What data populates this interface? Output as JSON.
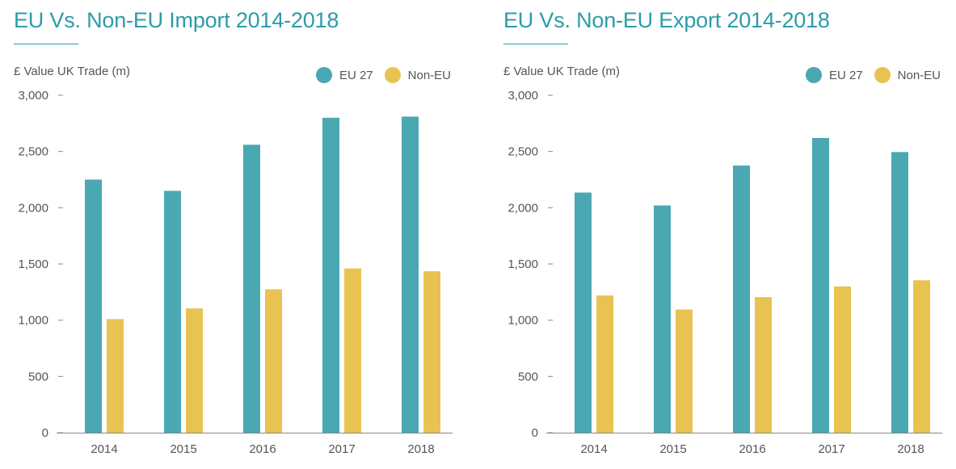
{
  "colors": {
    "eu": "#4aa8b3",
    "non_eu": "#e8c352",
    "title": "#2d9ca8",
    "axis": "#888888",
    "text": "#555555"
  },
  "chart_data": [
    {
      "type": "bar",
      "title": "EU Vs. Non-EU Import 2014-2018",
      "ylabel": "£ Value UK Trade (m)",
      "xlabel": "",
      "categories": [
        "2014",
        "2015",
        "2016",
        "2017",
        "2018"
      ],
      "ylim": [
        0,
        3000
      ],
      "yticks": [
        0,
        500,
        1000,
        1500,
        2000,
        2500,
        3000
      ],
      "ytick_labels": [
        "0",
        "500",
        "1,000",
        "1,500",
        "2,000",
        "2,500",
        "3,000"
      ],
      "legend_position": "top-right",
      "grid": false,
      "series": [
        {
          "name": "EU 27",
          "values": [
            2250,
            2150,
            2560,
            2800,
            2810
          ]
        },
        {
          "name": "Non-EU",
          "values": [
            1010,
            1105,
            1275,
            1460,
            1435
          ]
        }
      ]
    },
    {
      "type": "bar",
      "title": "EU Vs. Non-EU Export 2014-2018",
      "ylabel": "£ Value UK Trade (m)",
      "xlabel": "",
      "categories": [
        "2014",
        "2015",
        "2016",
        "2017",
        "2018"
      ],
      "ylim": [
        0,
        3000
      ],
      "yticks": [
        0,
        500,
        1000,
        1500,
        2000,
        2500,
        3000
      ],
      "ytick_labels": [
        "0",
        "500",
        "1,000",
        "1,500",
        "2,000",
        "2,500",
        "3,000"
      ],
      "legend_position": "top-right",
      "grid": false,
      "series": [
        {
          "name": "EU 27",
          "values": [
            2135,
            2020,
            2375,
            2620,
            2495
          ]
        },
        {
          "name": "Non-EU",
          "values": [
            1220,
            1095,
            1205,
            1300,
            1355
          ]
        }
      ]
    }
  ]
}
